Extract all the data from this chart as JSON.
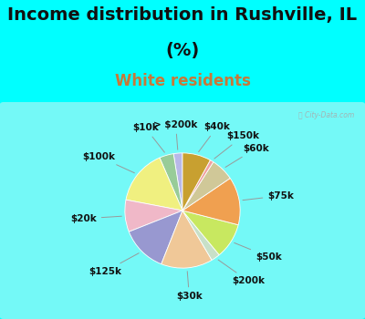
{
  "title_line1": "Income distribution in Rushville, IL",
  "title_line2": "(%)",
  "subtitle": "White residents",
  "bg_cyan": "#00FFFF",
  "bg_chart": "#d8efe8",
  "labels": [
    "> $200k",
    "$10k",
    "$100k",
    "$20k",
    "$125k",
    "$30k",
    "$200k",
    "$50k",
    "$75k",
    "$60k",
    "$150k",
    "$40k"
  ],
  "values": [
    2.5,
    4.0,
    15.5,
    9.0,
    13.0,
    14.5,
    2.5,
    10.0,
    13.5,
    6.5,
    1.0,
    8.0
  ],
  "colors": [
    "#b8b8e8",
    "#98cc98",
    "#f0f080",
    "#f0b8c8",
    "#9898d0",
    "#f0c898",
    "#c8e0c8",
    "#c8e860",
    "#f0a050",
    "#d0c898",
    "#f0a0a0",
    "#c8a030"
  ],
  "startangle": 90,
  "label_fontsize": 7.5,
  "title_fontsize": 14,
  "subtitle_fontsize": 12,
  "subtitle_color": "#c87838",
  "title_color": "#111111",
  "watermark": "ⓘ City-Data.com"
}
